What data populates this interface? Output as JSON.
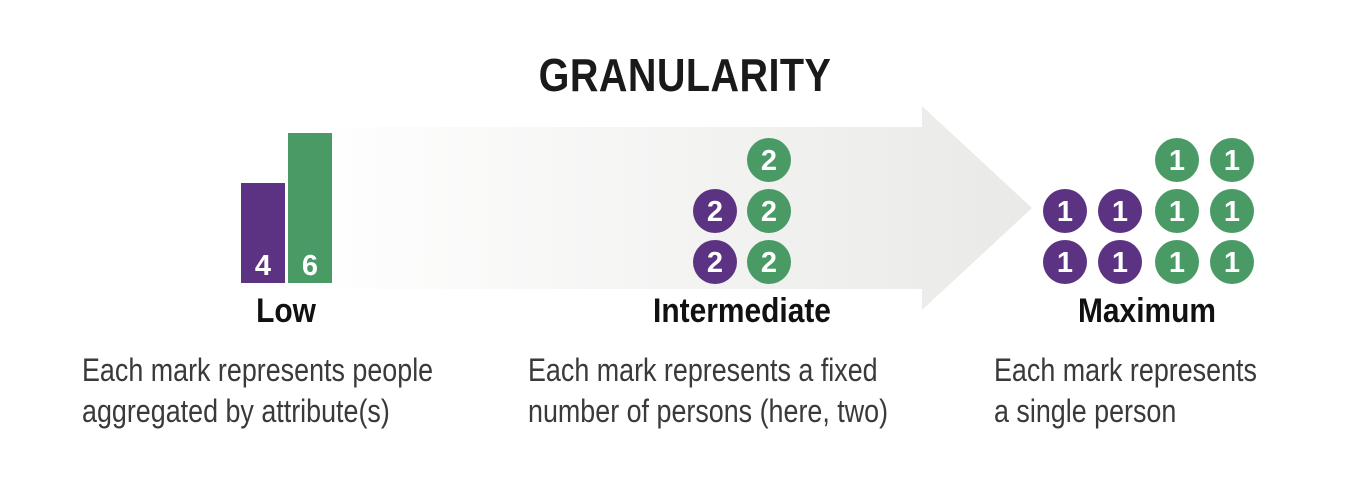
{
  "title": "GRANULARITY",
  "colors": {
    "purple": "#5c3383",
    "green": "#4a9a66",
    "arrow_start": "#ffffff",
    "arrow_end": "#e9e9e7"
  },
  "levels": [
    {
      "label": "Low",
      "desc_lines": [
        "Each mark represents people",
        "aggregated by attribute(s)"
      ],
      "bars": [
        {
          "group": "purple",
          "value": 4
        },
        {
          "group": "green",
          "value": 6
        }
      ]
    },
    {
      "label": "Intermediate",
      "desc_lines": [
        "Each mark represents a fixed",
        "number of persons (here, two)"
      ],
      "mark_value": "2",
      "purple_marks": 2,
      "green_marks": 3
    },
    {
      "label": "Maximum",
      "desc_lines": [
        "Each mark represents",
        "a single person"
      ],
      "mark_value": "1",
      "purple_marks": 4,
      "green_marks": 6
    }
  ]
}
